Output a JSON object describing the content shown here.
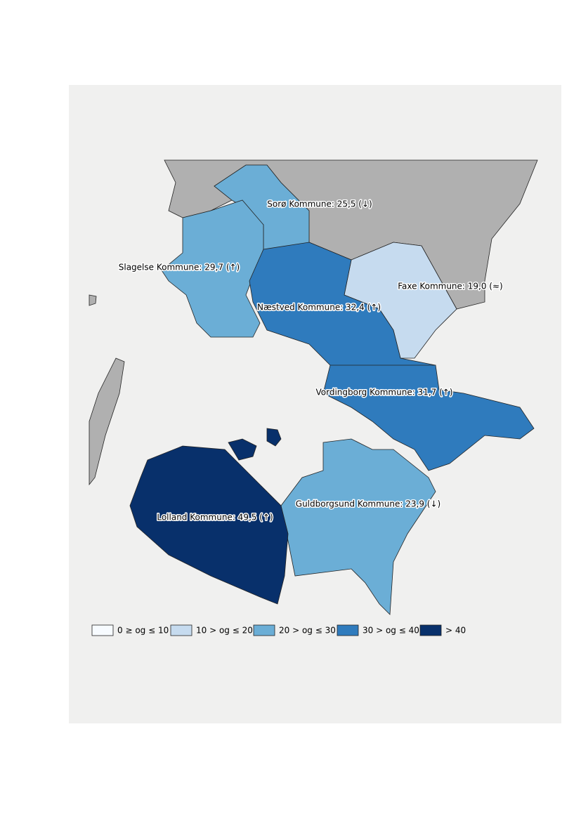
{
  "regions": [
    {
      "label": "Sorø Kommune: 25,5 (↓)",
      "color": "#6baed6"
    },
    {
      "label": "Slagelse Kommune: 29,7 (↑)",
      "color": "#6baed6"
    },
    {
      "label": "Faxe Kommune: 19,0 (≈)",
      "color": "#c6dbef"
    },
    {
      "label": "Næstved Kommune: 32,4 (↑)",
      "color": "#2f7bbd"
    },
    {
      "label": "Vordingborg Kommune: 31,7 (↑)",
      "color": "#2f7bbd"
    },
    {
      "label": "Guldborgsund Kommune: 23,9 (↓)",
      "color": "#6baed6"
    },
    {
      "label": "Lolland Kommune: 49,5 (↑)",
      "color": "#08306b"
    }
  ],
  "legend": [
    {
      "label": "0 ≥ og ≤ 10",
      "color": "#f7fbff"
    },
    {
      "label": "10 > og ≤ 20",
      "color": "#c6dbef"
    },
    {
      "label": "20 > og ≤ 30",
      "color": "#6baed6"
    },
    {
      "label": "30 > og ≤ 40",
      "color": "#2f7bbd"
    },
    {
      "label": "> 40",
      "color": "#08306b"
    }
  ]
}
